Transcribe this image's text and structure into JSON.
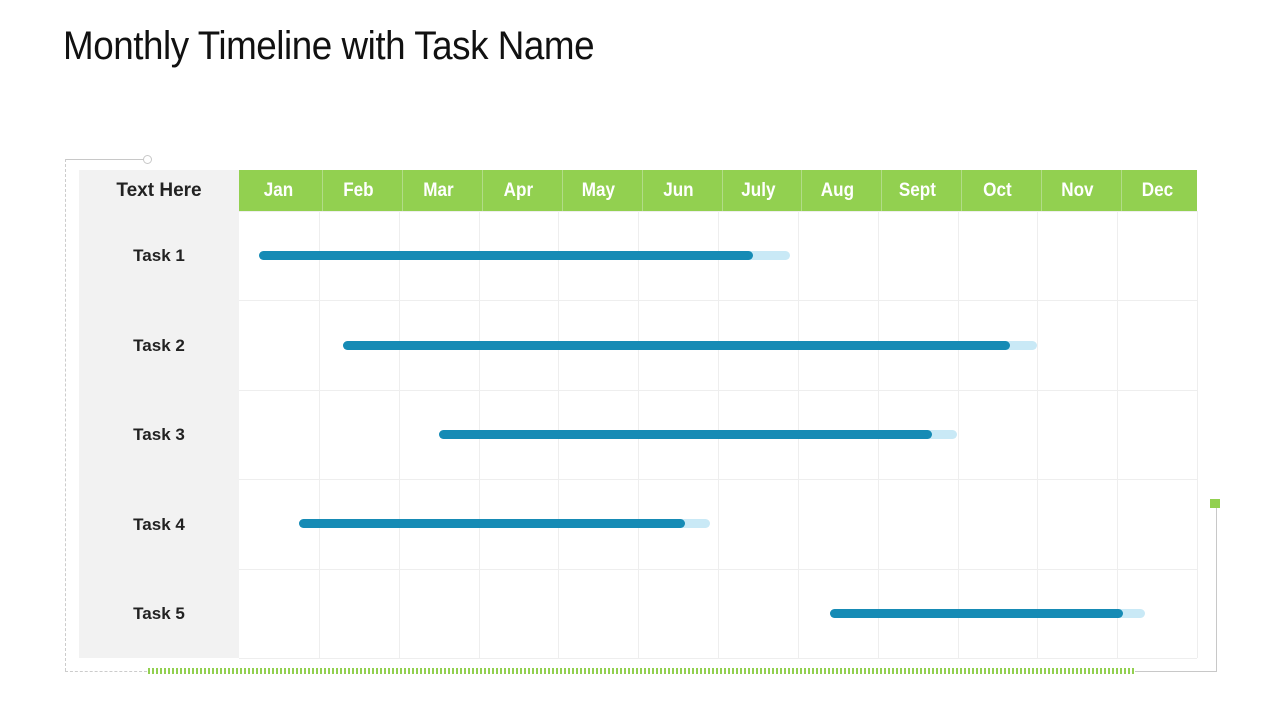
{
  "title": "Monthly Timeline with Task Name",
  "header_label": "Text Here",
  "months": [
    "Jan",
    "Feb",
    "Mar",
    "Apr",
    "May",
    "Jun",
    "July",
    "Aug",
    "Sept",
    "Oct",
    "Nov",
    "Dec"
  ],
  "colors": {
    "header": "#92d050",
    "label_column": "#f2f2f2",
    "progress": "#168bb5",
    "track": "#c9e9f6"
  },
  "tasks": [
    {
      "label": "Task 1",
      "start": 0.25,
      "end": 6.9,
      "progress": 0.93
    },
    {
      "label": "Task 2",
      "start": 1.3,
      "end": 10.0,
      "progress": 0.96
    },
    {
      "label": "Task 3",
      "start": 2.5,
      "end": 9.0,
      "progress": 0.95
    },
    {
      "label": "Task 4",
      "start": 0.75,
      "end": 5.9,
      "progress": 0.94
    },
    {
      "label": "Task 5",
      "start": 7.4,
      "end": 11.35,
      "progress": 0.93
    }
  ]
}
